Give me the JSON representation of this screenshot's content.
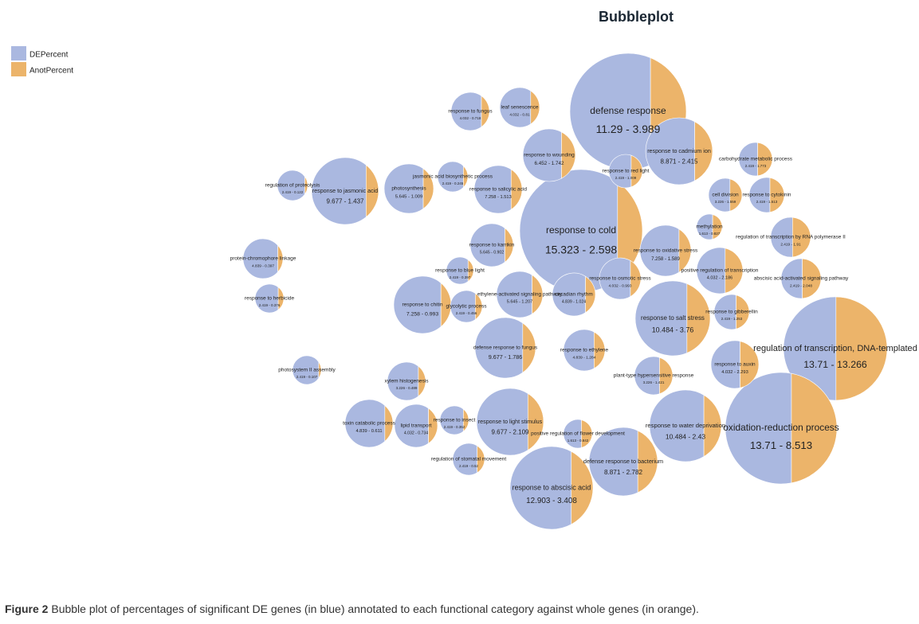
{
  "chart_data": {
    "type": "bubble",
    "title": "Bubbleplot",
    "categories": [
      "defense response",
      "response to cold",
      "regulation of transcription, DNA-templated",
      "oxidation-reduction process",
      "response to abscisic acid",
      "response to salt stress",
      "response to water deprivation",
      "response to cadmium ion",
      "defense response to bacterium",
      "response to jasmonic acid",
      "response to light stimulus",
      "defense response to fungus",
      "response to wounding",
      "photosynthesis",
      "response to chitin",
      "response to salicylic acid",
      "response to oxidative stress",
      "ethylene-activated signaling pathway",
      "response to karrikin",
      "response to fungus",
      "leaf senescence",
      "circadian rhythm",
      "response to osmotic stress",
      "response to ethylene",
      "plant-type hypersensitive response",
      "positive regulation of transcription",
      "response to auxin",
      "toxin catabolic process",
      "lipid transport",
      "xylem histogenesis",
      "cell division",
      "abscisic acid-activated signaling pathway",
      "response to cytokinin",
      "carbohydrate metabolic process",
      "regulation of transcription by RNA polymerase II",
      "protein-chromophore linkage",
      "response to gibberellin",
      "regulation of stomatal movement",
      "response to insect",
      "glycolytic process",
      "photosystem II assembly",
      "regulation of proteolysis",
      "response to herbicide",
      "positive regulation of flower development",
      "response to blue light",
      "jasmonic acid biosynthetic process",
      "response to red light",
      "methylation"
    ],
    "series": [
      {
        "name": "DEPercent",
        "color": "#aab8e0",
        "values": [
          11.29,
          15.323,
          13.71,
          13.71,
          12.903,
          10.484,
          10.484,
          8.871,
          8.871,
          9.677,
          9.677,
          9.677,
          6.452,
          5.645,
          7.258,
          7.258,
          7.258,
          5.645,
          5.645,
          4.032,
          4.032,
          4.839,
          4.032,
          4.839,
          3.226,
          4.032,
          4.032,
          4.839,
          4.032,
          3.226,
          3.226,
          2.419,
          2.419,
          2.419,
          2.419,
          4.839,
          2.419,
          2.419,
          2.419,
          2.419,
          2.419,
          2.419,
          2.419,
          1.613,
          2.419,
          2.419,
          2.419,
          1.613
        ]
      },
      {
        "name": "AnotPercent",
        "color": "#ecb46a",
        "values": [
          3.989,
          2.598,
          13.266,
          8.513,
          3.408,
          3.76,
          2.43,
          2.415,
          2.782,
          1.437,
          2.109,
          1.786,
          1.742,
          1.009,
          0.993,
          1.513,
          1.589,
          1.207,
          0.902,
          0.718,
          0.81,
          1.024,
          0.993,
          1.284,
          1.421,
          2.186,
          2.293,
          0.611,
          0.734,
          0.489,
          1.559,
          2.048,
          1.513,
          1.773,
          1.91,
          0.397,
          1.253,
          0.52,
          0.352,
          0.456,
          0.107,
          0.122,
          0.376,
          0.842,
          0.397,
          0.245,
          1.009,
          0.827
        ]
      }
    ],
    "value_labels": [
      "11.29 - 3.989",
      "15.323 - 2.598",
      "13.71 - 13.266",
      "13.71 - 8.513",
      "12.903 - 3.408",
      "10.484 - 3.76",
      "10.484 - 2.43",
      "8.871 - 2.415",
      "8.871 - 2.782",
      "9.677 - 1.437",
      "9.677 - 2.109",
      "9.677 - 1.786",
      "6.452 - 1.742",
      "5.645 - 1.009",
      "7.258 - 0.993",
      "7.258 - 1.513",
      "7.258 - 1.589",
      "5.645 - 1.207",
      "5.645 - 0.902",
      "4.032 - 0.718",
      "4.032 - 0.81",
      "4.839 - 1.024",
      "4.032 - 0.993",
      "4.839 - 1.284",
      "3.226 - 1.421",
      "4.032 - 2.186",
      "4.032 - 2.293",
      "4.839 - 0.611",
      "4.032 - 0.734",
      "3.226 - 0.489",
      "3.226 - 1.559",
      "2.419 - 2.048",
      "2.419 - 1.513",
      "2.419 - 1.773",
      "2.419 - 1.91",
      "4.839 - 0.397",
      "2.419 - 1.253",
      "2.419 - 0.52",
      "2.419 - 0.352",
      "2.419 - 0.456",
      "2.419 - 0.107",
      "2.419 - 0.122",
      "2.419 - 0.376",
      "1.613 - 0.842",
      "2.419 - 0.397",
      "2.419 - 0.245",
      "2.419 - 1.009",
      "1.613 - 0.827"
    ]
  },
  "caption": {
    "label": "Figure 2",
    "text": "Bubble plot of percentages of significant DE genes (in blue) annotated to each functional category against whole genes (in orange)."
  }
}
